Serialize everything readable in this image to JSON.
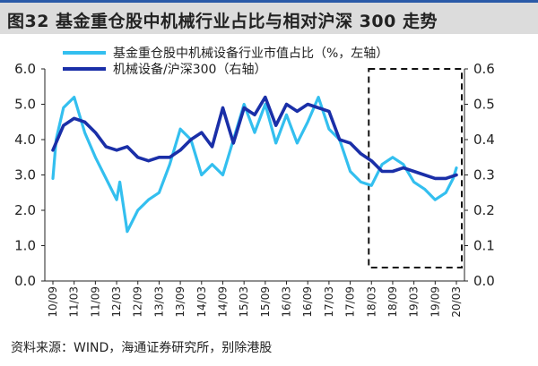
{
  "title": "图32 基金重仓股中机械行业占比与相对沪深 300 走势",
  "source": "资料来源：WIND，海通证券研究所，别除港股",
  "chart_data": {
    "type": "line",
    "legend_position": "top-center",
    "grid": false,
    "categories": [
      "10/09",
      "11/03",
      "11/09",
      "12/03",
      "12/09",
      "13/03",
      "13/09",
      "14/03",
      "14/09",
      "15/03",
      "15/09",
      "16/03",
      "16/09",
      "17/03",
      "17/09",
      "18/03",
      "18/09",
      "19/03",
      "19/09",
      "20/03"
    ],
    "left_axis": {
      "ylim": [
        0,
        6
      ],
      "ticks": [
        "0.0",
        "1.0",
        "2.0",
        "3.0",
        "4.0",
        "5.0",
        "6.0"
      ]
    },
    "right_axis": {
      "ylim": [
        0,
        0.6
      ],
      "ticks": [
        "0.0",
        "0.1",
        "0.2",
        "0.3",
        "0.4",
        "0.5",
        "0.6"
      ]
    },
    "series": [
      {
        "name": "基金重仓股中机械设备行业市值占比（%，左轴）",
        "axis": "left",
        "color": "#33bfef",
        "x": [
          0,
          0.15,
          0.5,
          1.0,
          1.5,
          2.0,
          2.5,
          3.0,
          3.15,
          3.5,
          4.0,
          4.5,
          5.0,
          5.5,
          6.0,
          6.5,
          7.0,
          7.5,
          8.0,
          8.3,
          9.0,
          9.5,
          10.0,
          10.5,
          11.0,
          11.5,
          12.0,
          12.5,
          13.0,
          13.5,
          14.0,
          14.5,
          15.0,
          15.5,
          16.0,
          16.5,
          17.0,
          17.5,
          18.0,
          18.5,
          18.85,
          19.0
        ],
        "values": [
          2.9,
          4.0,
          4.9,
          5.2,
          4.2,
          3.5,
          2.9,
          2.3,
          2.8,
          1.4,
          2.0,
          2.3,
          2.5,
          3.3,
          4.3,
          4.0,
          3.0,
          3.3,
          3.0,
          3.6,
          5.0,
          4.2,
          5.0,
          3.9,
          4.7,
          3.9,
          4.5,
          5.2,
          4.3,
          4.0,
          3.1,
          2.8,
          2.7,
          3.3,
          3.5,
          3.3,
          2.8,
          2.6,
          2.3,
          2.5,
          2.9,
          3.2
        ]
      },
      {
        "name": "机械设备/沪深300（右轴）",
        "axis": "right",
        "color": "#1a2fa8",
        "x": [
          0,
          0.5,
          1.0,
          1.5,
          2.0,
          2.5,
          3.0,
          3.5,
          4.0,
          4.5,
          5.0,
          5.5,
          6.0,
          6.5,
          7.0,
          7.5,
          8.0,
          8.5,
          9.0,
          9.5,
          10.0,
          10.5,
          11.0,
          11.5,
          12.0,
          12.5,
          13.0,
          13.5,
          14.0,
          14.5,
          15.0,
          15.5,
          16.0,
          16.5,
          17.0,
          17.5,
          18.0,
          18.5,
          19.0
        ],
        "values": [
          0.37,
          0.44,
          0.46,
          0.45,
          0.42,
          0.38,
          0.37,
          0.38,
          0.35,
          0.34,
          0.35,
          0.35,
          0.37,
          0.4,
          0.42,
          0.38,
          0.49,
          0.39,
          0.49,
          0.47,
          0.52,
          0.44,
          0.5,
          0.48,
          0.5,
          0.49,
          0.48,
          0.4,
          0.39,
          0.36,
          0.34,
          0.31,
          0.31,
          0.32,
          0.31,
          0.3,
          0.29,
          0.29,
          0.3
        ]
      }
    ]
  }
}
